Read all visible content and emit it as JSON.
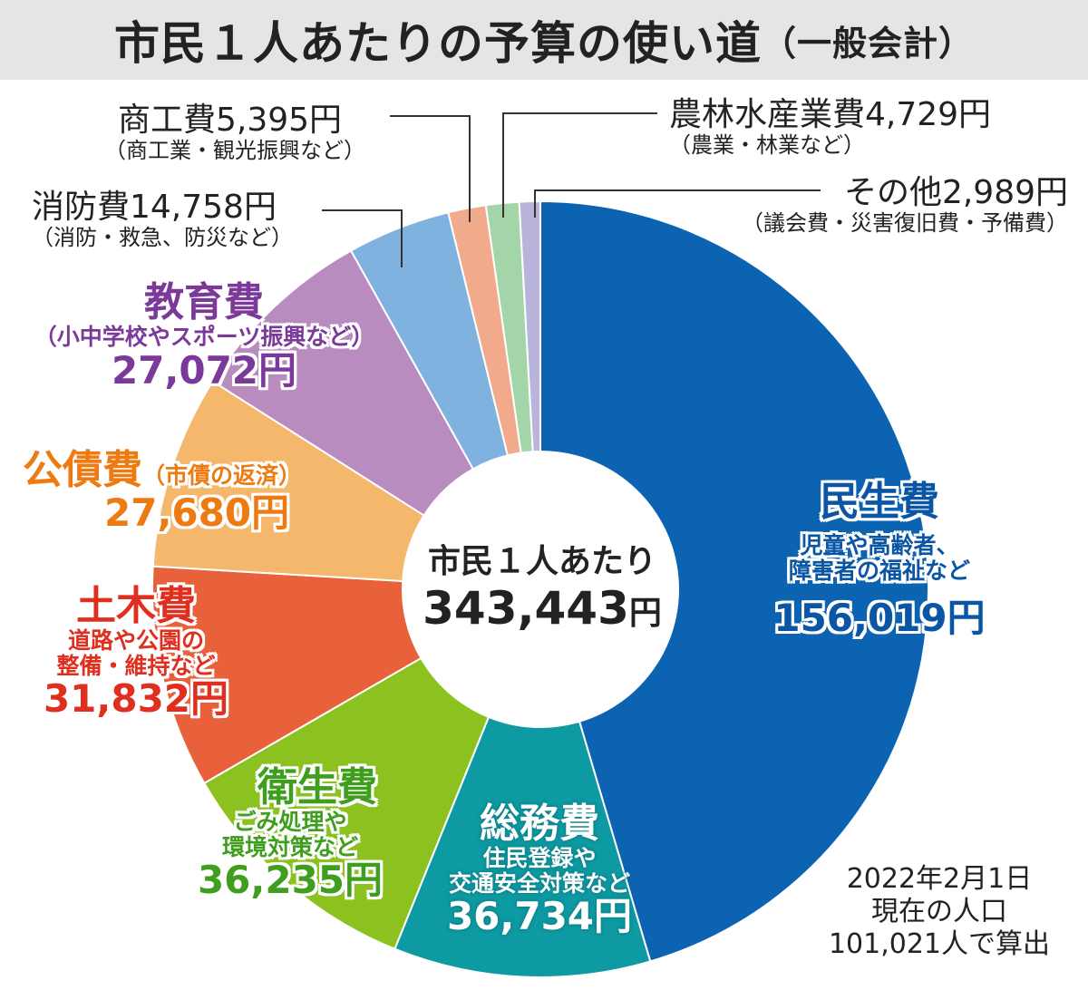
{
  "title": "市民１人あたりの予算の使い道",
  "title_suffix": "（一般会計）",
  "center": {
    "line1": "市民１人あたり",
    "total": "343,443",
    "unit": "円"
  },
  "note": [
    "2022年2月1日",
    "現在の人口",
    "101,021人で算出"
  ],
  "chart_data": {
    "type": "pie",
    "title": "市民１人あたりの予算の使い道（一般会計）",
    "unit": "円",
    "categories": [
      "民生費",
      "総務費",
      "衛生費",
      "土木費",
      "公債費",
      "教育費",
      "消防費",
      "商工費",
      "農林水産業費",
      "その他"
    ],
    "values": [
      156019,
      36734,
      36235,
      31832,
      27680,
      27072,
      14758,
      5395,
      4729,
      2989
    ],
    "colors": [
      "#0b63b1",
      "#0e9aa2",
      "#8cc220",
      "#e8613a",
      "#f5b76b",
      "#b98cc0",
      "#80b2e0",
      "#f2aa8c",
      "#a3d5a9",
      "#b8b4dc"
    ],
    "labels": [
      {
        "name": "民生費",
        "desc": "（児童や高齢者、障害者の福祉など）",
        "desc1": "児童や高齢者、",
        "desc2": "障害者の福祉など",
        "value": "156,019円"
      },
      {
        "name": "総務費",
        "desc1": "住民登録や",
        "desc2": "交通安全対策など",
        "value": "36,734円"
      },
      {
        "name": "衛生費",
        "desc1": "ごみ処理や",
        "desc2": "環境対策など",
        "value": "36,235円"
      },
      {
        "name": "土木費",
        "desc1": "道路や公園の",
        "desc2": "整備・維持など",
        "value": "31,832円"
      },
      {
        "name": "公債費",
        "desc1": "（市債の返済）",
        "value": "27,680円"
      },
      {
        "name": "教育費",
        "desc1": "（小中学校やスポーツ振興など）",
        "value": "27,072円"
      },
      {
        "name": "消防費14,758円",
        "desc1": "（消防・救急、防災など）"
      },
      {
        "name": "商工費5,395円",
        "desc1": "（商工業・観光振興など）"
      },
      {
        "name": "農林水産業費4,729円",
        "desc1": "（農業・林業など）"
      },
      {
        "name": "その他2,989円",
        "desc1": "（議会費・災害復旧費・予備費）"
      }
    ]
  }
}
